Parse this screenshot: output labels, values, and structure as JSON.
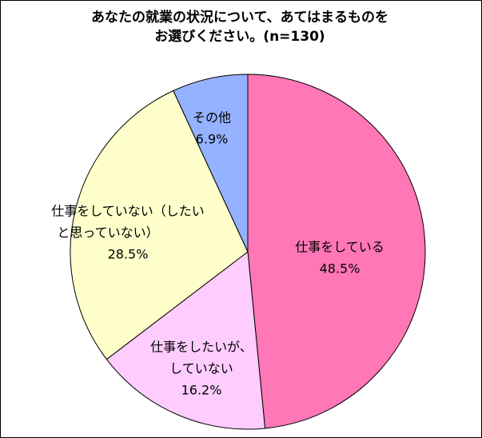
{
  "chart_data": {
    "type": "pie",
    "title": [
      "あなたの就業の状況について、あてはまるものを",
      "お選びください。(n=130)"
    ],
    "categories": [
      [
        "仕事をしている"
      ],
      [
        "仕事をしたいが、",
        "していない"
      ],
      [
        "仕事をしていない（したい",
        "と思っていない）"
      ],
      [
        "その他"
      ]
    ],
    "values": [
      48.5,
      16.2,
      28.5,
      6.9
    ],
    "value_labels": [
      "48.5%",
      "16.2%",
      "28.5%",
      "6.9%"
    ],
    "colors": [
      "#ff77b7",
      "#ffccff",
      "#ffffcc",
      "#94b2ff"
    ]
  }
}
